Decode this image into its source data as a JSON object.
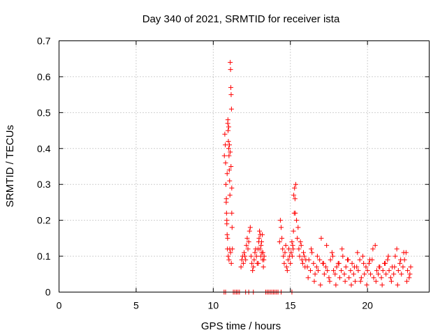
{
  "chart_data": {
    "type": "scatter",
    "title": "Day 340 of 2021, SRMTID for receiver ista",
    "xlabel": "GPS time / hours",
    "ylabel": "SRMTID / TECUs",
    "xlim": [
      0,
      24
    ],
    "ylim": [
      0,
      0.7
    ],
    "xticks": [
      0,
      5,
      10,
      15,
      20
    ],
    "xtick_labels": [
      "0",
      "5",
      "10",
      "15",
      "20"
    ],
    "yticks": [
      0,
      0.1,
      0.2,
      0.3,
      0.4,
      0.5,
      0.6,
      0.7
    ],
    "ytick_labels": [
      "0",
      "0.1",
      "0.2",
      "0.3",
      "0.4",
      "0.5",
      "0.6",
      "0.7"
    ],
    "grid": true,
    "marker": "+",
    "color": "#ff0000",
    "series": [
      {
        "name": "SRMTID",
        "x": [
          10.72,
          10.75,
          10.78,
          10.8,
          10.82,
          10.84,
          10.86,
          10.88,
          10.9,
          10.92,
          10.94,
          10.96,
          10.98,
          11.0,
          11.02,
          11.04,
          11.06,
          11.08,
          11.1,
          11.12,
          11.14,
          11.16,
          11.18,
          11.2,
          11.22,
          11.24,
          10.85,
          10.9,
          10.95,
          11.0,
          11.05,
          11.1,
          11.15,
          11.2,
          10.88,
          10.93,
          10.97,
          11.02,
          11.07,
          11.12,
          11.17,
          11.8,
          11.85,
          11.9,
          11.95,
          12.0,
          12.05,
          12.1,
          12.15,
          12.2,
          12.25,
          12.3,
          12.35,
          12.4,
          12.45,
          12.5,
          12.55,
          12.6,
          12.65,
          12.7,
          12.75,
          12.8,
          12.85,
          12.9,
          12.95,
          13.0,
          13.05,
          13.1,
          13.15,
          13.2,
          13.25,
          13.3,
          12.92,
          12.97,
          13.03,
          13.08,
          13.13,
          13.18,
          13.22,
          13.28,
          14.3,
          14.35,
          14.4,
          14.45,
          14.5,
          14.55,
          14.6,
          14.65,
          14.7,
          14.75,
          14.8,
          14.85,
          14.9,
          14.95,
          15.0,
          15.05,
          15.1,
          15.15,
          15.2,
          15.25,
          15.3,
          15.35,
          15.4,
          15.45,
          15.5,
          15.55,
          15.6,
          15.65,
          15.7,
          15.75,
          15.8,
          15.85,
          15.9,
          15.95,
          16.0,
          15.22,
          15.27,
          15.32,
          15.18,
          15.12,
          16.1,
          16.2,
          16.3,
          16.4,
          16.5,
          16.6,
          16.7,
          16.8,
          16.9,
          17.0,
          17.1,
          17.2,
          17.3,
          17.4,
          17.5,
          17.6,
          17.7,
          17.8,
          17.9,
          18.0,
          18.1,
          18.2,
          18.3,
          18.4,
          18.5,
          18.6,
          18.7,
          18.8,
          18.9,
          19.0,
          19.1,
          19.2,
          19.3,
          19.4,
          19.5,
          19.6,
          19.7,
          19.8,
          19.9,
          20.0,
          20.1,
          20.2,
          20.3,
          20.4,
          20.5,
          20.6,
          20.7,
          20.8,
          20.9,
          21.0,
          21.1,
          21.2,
          21.3,
          21.4,
          21.5,
          21.6,
          21.7,
          21.8,
          21.9,
          22.0,
          22.1,
          22.2,
          22.3,
          22.4,
          22.5,
          22.6,
          22.7,
          22.8,
          16.15,
          16.35,
          16.55,
          16.75,
          16.95,
          17.15,
          17.35,
          17.55,
          17.75,
          17.95,
          18.15,
          18.35,
          18.55,
          18.75,
          18.95,
          19.15,
          19.35,
          19.55,
          19.75,
          19.95,
          20.15,
          20.35,
          20.55,
          20.75,
          20.95,
          21.15,
          21.35,
          21.55,
          21.75,
          21.95,
          22.15,
          22.35,
          22.55,
          22.75,
          10.7,
          10.8,
          11.3,
          11.4,
          11.5,
          11.6,
          11.7,
          12.1,
          12.3,
          12.6,
          13.4,
          13.5,
          13.6,
          13.7,
          13.8,
          13.9,
          14.0,
          14.1,
          14.2,
          14.4,
          15.1
        ],
        "y": [
          0.38,
          0.44,
          0.41,
          0.36,
          0.3,
          0.25,
          0.22,
          0.19,
          0.16,
          0.12,
          0.47,
          0.45,
          0.42,
          0.4,
          0.38,
          0.34,
          0.31,
          0.27,
          0.64,
          0.62,
          0.57,
          0.55,
          0.51,
          0.22,
          0.18,
          0.12,
          0.26,
          0.33,
          0.48,
          0.46,
          0.41,
          0.39,
          0.35,
          0.29,
          0.2,
          0.15,
          0.1,
          0.09,
          0.12,
          0.11,
          0.08,
          0.07,
          0.09,
          0.1,
          0.08,
          0.11,
          0.1,
          0.09,
          0.13,
          0.15,
          0.12,
          0.14,
          0.17,
          0.18,
          0.1,
          0.08,
          0.06,
          0.07,
          0.09,
          0.11,
          0.12,
          0.1,
          0.08,
          0.12,
          0.14,
          0.17,
          0.16,
          0.13,
          0.11,
          0.09,
          0.07,
          0.1,
          0.08,
          0.15,
          0.12,
          0.1,
          0.14,
          0.16,
          0.11,
          0.09,
          0.14,
          0.2,
          0.18,
          0.15,
          0.12,
          0.1,
          0.08,
          0.11,
          0.13,
          0.07,
          0.06,
          0.09,
          0.12,
          0.1,
          0.08,
          0.11,
          0.14,
          0.13,
          0.17,
          0.22,
          0.26,
          0.3,
          0.2,
          0.15,
          0.18,
          0.12,
          0.1,
          0.14,
          0.13,
          0.09,
          0.08,
          0.11,
          0.1,
          0.07,
          0.09,
          0.27,
          0.29,
          0.22,
          0.12,
          0.1,
          0.07,
          0.09,
          0.06,
          0.11,
          0.08,
          0.05,
          0.07,
          0.06,
          0.09,
          0.15,
          0.08,
          0.05,
          0.07,
          0.06,
          0.04,
          0.09,
          0.11,
          0.06,
          0.05,
          0.07,
          0.08,
          0.04,
          0.06,
          0.1,
          0.05,
          0.07,
          0.09,
          0.04,
          0.06,
          0.08,
          0.05,
          0.03,
          0.07,
          0.06,
          0.09,
          0.04,
          0.1,
          0.05,
          0.07,
          0.06,
          0.08,
          0.05,
          0.09,
          0.04,
          0.13,
          0.06,
          0.05,
          0.07,
          0.04,
          0.06,
          0.08,
          0.05,
          0.09,
          0.06,
          0.04,
          0.07,
          0.05,
          0.1,
          0.12,
          0.06,
          0.08,
          0.05,
          0.07,
          0.09,
          0.11,
          0.06,
          0.04,
          0.07,
          0.04,
          0.12,
          0.03,
          0.1,
          0.02,
          0.08,
          0.13,
          0.03,
          0.1,
          0.02,
          0.08,
          0.12,
          0.03,
          0.09,
          0.02,
          0.07,
          0.11,
          0.03,
          0.08,
          0.02,
          0.09,
          0.12,
          0.03,
          0.07,
          0.02,
          0.08,
          0.1,
          0.03,
          0.07,
          0.02,
          0.09,
          0.11,
          0.03,
          0.05,
          0,
          0,
          0,
          0,
          0,
          0,
          0,
          0,
          0,
          0,
          0,
          0,
          0,
          0,
          0,
          0,
          0,
          0,
          0,
          0,
          0
        ]
      }
    ]
  }
}
